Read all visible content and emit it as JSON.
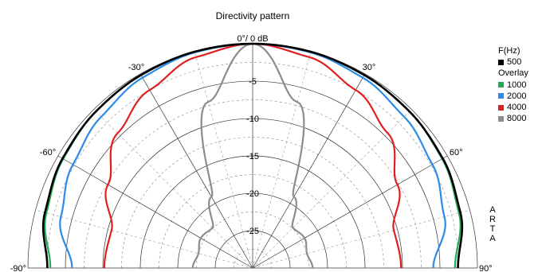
{
  "chart_data": {
    "type": "polar-line",
    "title": "Directivity pattern",
    "r_unit": "dB",
    "r_range": [
      -30,
      0
    ],
    "radial_ticks": [
      {
        "value": -5,
        "label": "-5"
      },
      {
        "value": -10,
        "label": "-10"
      },
      {
        "value": -15,
        "label": "-15"
      },
      {
        "value": -20,
        "label": "-20"
      },
      {
        "value": -25,
        "label": "-25"
      }
    ],
    "angle_range": [
      -90,
      90
    ],
    "angle_ticks": [
      {
        "value": 0,
        "label": "0°/ 0 dB"
      },
      {
        "value": -30,
        "label": "-30°"
      },
      {
        "value": 30,
        "label": "30°"
      },
      {
        "value": -60,
        "label": "-60°"
      },
      {
        "value": 60,
        "label": "60°"
      },
      {
        "value": -90,
        "label": "-90°"
      },
      {
        "value": 90,
        "label": "90°"
      }
    ],
    "grid": true,
    "legend_header": "F(Hz)",
    "legend_overlay_label": "Overlay",
    "angles": [
      -90,
      -75,
      -60,
      -45,
      -30,
      -15,
      0,
      15,
      30,
      45,
      60,
      75,
      90
    ],
    "series": [
      {
        "name": "500",
        "color": "#000000",
        "values": [
          -2.6,
          -1.3,
          -0.7,
          -0.4,
          -0.2,
          -0.05,
          0,
          -0.05,
          -0.2,
          -0.4,
          -0.7,
          -1.3,
          -2.6
        ]
      },
      {
        "name": "1000",
        "color": "#22aa55",
        "values": [
          -3.0,
          -1.5,
          -0.8,
          -0.4,
          -0.2,
          -0.05,
          0,
          -0.05,
          -0.2,
          -0.4,
          -0.8,
          -1.5,
          -3.0
        ]
      },
      {
        "name": "2000",
        "color": "#2a8be8",
        "values": [
          -5.9,
          -3.5,
          -2.3,
          -1.4,
          -0.6,
          -0.15,
          0,
          -0.15,
          -0.6,
          -1.4,
          -2.3,
          -3.5,
          -5.9
        ]
      },
      {
        "name": "4000",
        "color": "#e02020",
        "values": [
          -10.2,
          -10.5,
          -7.7,
          -4.5,
          -2.5,
          -0.8,
          0,
          -0.8,
          -2.5,
          -4.5,
          -7.7,
          -10.5,
          -10.2
        ]
      },
      {
        "name": "8000",
        "color": "#8c8c8c",
        "values": [
          -22.0,
          -22.5,
          -22.0,
          -22.4,
          -19.0,
          -7.0,
          0,
          -7.0,
          -19.0,
          -22.4,
          -22.0,
          -22.5,
          -22.0
        ]
      }
    ],
    "watermark": "ARTA"
  }
}
